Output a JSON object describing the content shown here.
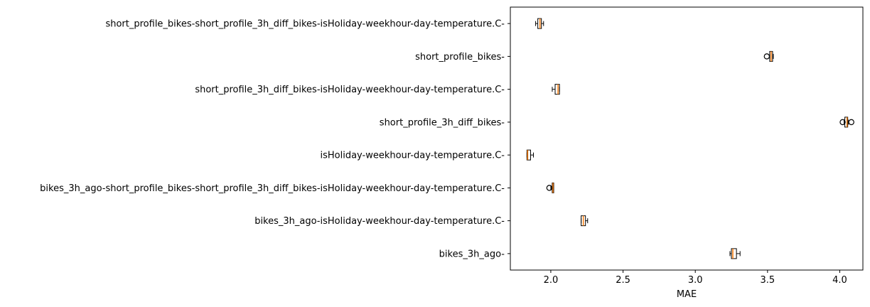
{
  "chart_data": {
    "type": "boxplot",
    "orientation": "horizontal",
    "title": "",
    "xlabel": "MAE",
    "ylabel": "",
    "xlim": [
      1.72,
      4.16
    ],
    "xticks": [
      2.0,
      2.5,
      3.0,
      3.5,
      4.0
    ],
    "xtick_labels": [
      "2.0",
      "2.5",
      "3.0",
      "3.5",
      "4.0"
    ],
    "grid": false,
    "colors": {
      "box": "#000000",
      "median": "#ff7f0e",
      "background": "#ffffff"
    },
    "categories": [
      "short_profile_bikes-short_profile_3h_diff_bikes-isHoliday-weekhour-day-temperature.C-",
      "short_profile_bikes-",
      "short_profile_3h_diff_bikes-isHoliday-weekhour-day-temperature.C-",
      "short_profile_3h_diff_bikes-",
      "isHoliday-weekhour-day-temperature.C-",
      "bikes_3h_ago-short_profile_bikes-short_profile_3h_diff_bikes-isHoliday-weekhour-day-temperature.C-",
      "bikes_3h_ago-isHoliday-weekhour-day-temperature.C-",
      "bikes_3h_ago-"
    ],
    "boxes": [
      {
        "whislo": 1.895,
        "q1": 1.91,
        "med": 1.925,
        "q3": 1.935,
        "whishi": 1.95,
        "fliers": []
      },
      {
        "whislo": 3.515,
        "q1": 3.515,
        "med": 3.525,
        "q3": 3.535,
        "whishi": 3.54,
        "fliers": [
          3.495
        ]
      },
      {
        "whislo": 2.01,
        "q1": 2.03,
        "med": 2.05,
        "q3": 2.06,
        "whishi": 2.06,
        "fliers": []
      },
      {
        "whislo": 4.03,
        "q1": 4.035,
        "med": 4.05,
        "q3": 4.055,
        "whishi": 4.06,
        "fliers": [
          4.02,
          4.08
        ]
      },
      {
        "whislo": 1.835,
        "q1": 1.835,
        "med": 1.84,
        "q3": 1.86,
        "whishi": 1.88,
        "fliers": []
      },
      {
        "whislo": 2.0,
        "q1": 2.01,
        "med": 2.015,
        "q3": 2.02,
        "whishi": 2.02,
        "fliers": [
          1.99
        ]
      },
      {
        "whislo": 2.21,
        "q1": 2.21,
        "med": 2.225,
        "q3": 2.24,
        "whishi": 2.255,
        "fliers": []
      },
      {
        "whislo": 3.24,
        "q1": 3.25,
        "med": 3.26,
        "q3": 3.285,
        "whishi": 3.31,
        "fliers": []
      }
    ]
  }
}
